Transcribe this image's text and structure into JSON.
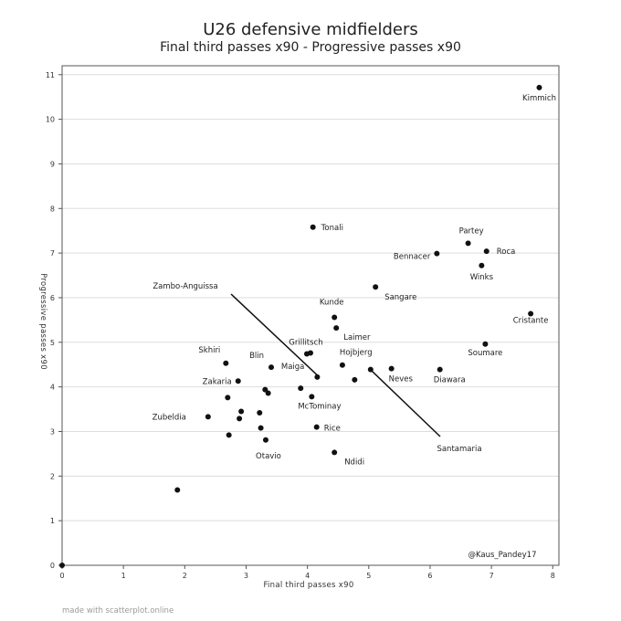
{
  "footer": "made with scatterplot.online",
  "chart_data": {
    "type": "scatter",
    "title": "U26 defensive midfielders",
    "subtitle": "Final third passes x90 - Progressive passes x90",
    "xlabel": "Final third passes x90",
    "ylabel": "Progressive passes x90",
    "xlim": [
      0,
      8.1
    ],
    "ylim": [
      0,
      11.2
    ],
    "xticks": [
      "0",
      "1",
      "2",
      "3",
      "4",
      "5",
      "6",
      "7",
      "8"
    ],
    "yticks": [
      "0",
      "1",
      "2",
      "3",
      "4",
      "5",
      "6",
      "7",
      "8",
      "9",
      "10",
      "11"
    ],
    "grid": "horizontal",
    "watermark": "@Kaus_Pandey17",
    "colors": {
      "point": "#111111",
      "grid": "#dddddd",
      "axis": "#555555"
    },
    "points": [
      {
        "label": "Kimmich",
        "x": 7.78,
        "y": 10.71
      },
      {
        "label": "Tonali",
        "x": 4.09,
        "y": 7.58
      },
      {
        "label": "Partey",
        "x": 6.62,
        "y": 7.22
      },
      {
        "label": "Roca",
        "x": 6.92,
        "y": 7.04
      },
      {
        "label": "Bennacer",
        "x": 6.11,
        "y": 6.99
      },
      {
        "label": "Winks",
        "x": 6.84,
        "y": 6.72
      },
      {
        "label": "Sangare",
        "x": 5.11,
        "y": 6.24
      },
      {
        "label": "Cristante",
        "x": 7.64,
        "y": 5.64
      },
      {
        "label": "Kunde",
        "x": 4.44,
        "y": 5.56
      },
      {
        "label": "Laimer",
        "x": 4.47,
        "y": 5.32
      },
      {
        "label": "Soumare",
        "x": 6.9,
        "y": 4.96
      },
      {
        "label": "Grillitsch",
        "x": 3.99,
        "y": 4.74
      },
      {
        "label": "",
        "x": 4.05,
        "y": 4.76
      },
      {
        "label": "Skhiri",
        "x": 2.67,
        "y": 4.53
      },
      {
        "label": "Hojbjerg",
        "x": 4.57,
        "y": 4.49
      },
      {
        "label": "Blin",
        "x": 3.41,
        "y": 4.44
      },
      {
        "label": "Neves",
        "x": 5.37,
        "y": 4.41
      },
      {
        "label": "Diawara",
        "x": 6.16,
        "y": 4.39
      },
      {
        "label": "",
        "x": 5.03,
        "y": 4.39
      },
      {
        "label": "Maiga",
        "x": 4.16,
        "y": 4.22
      },
      {
        "label": "",
        "x": 4.77,
        "y": 4.16
      },
      {
        "label": "Zakaria",
        "x": 2.87,
        "y": 4.13
      },
      {
        "label": "",
        "x": 3.89,
        "y": 3.97
      },
      {
        "label": "",
        "x": 3.31,
        "y": 3.94
      },
      {
        "label": "",
        "x": 3.36,
        "y": 3.86
      },
      {
        "label": "McTominay",
        "x": 4.07,
        "y": 3.78
      },
      {
        "label": "",
        "x": 2.7,
        "y": 3.76
      },
      {
        "label": "",
        "x": 2.92,
        "y": 3.45
      },
      {
        "label": "",
        "x": 3.22,
        "y": 3.42
      },
      {
        "label": "Zubeldia",
        "x": 2.38,
        "y": 3.33
      },
      {
        "label": "",
        "x": 2.89,
        "y": 3.29
      },
      {
        "label": "Rice",
        "x": 4.15,
        "y": 3.1
      },
      {
        "label": "",
        "x": 3.24,
        "y": 3.08
      },
      {
        "label": "",
        "x": 2.72,
        "y": 2.92
      },
      {
        "label": "Otavio",
        "x": 3.32,
        "y": 2.81
      },
      {
        "label": "Ndidi",
        "x": 4.44,
        "y": 2.53
      },
      {
        "label": "",
        "x": 1.88,
        "y": 1.69
      },
      {
        "label": "",
        "x": 0.0,
        "y": 0.0
      }
    ],
    "annotations": [
      {
        "label": "Zambo-Anguissa",
        "target_x": 4.17,
        "target_y": 4.25
      },
      {
        "label": "Santamaria",
        "target_x": 5.04,
        "target_y": 4.37
      }
    ]
  }
}
